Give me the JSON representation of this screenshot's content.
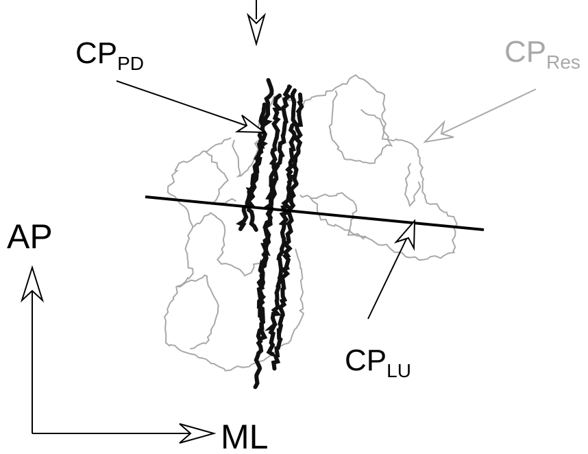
{
  "labels": {
    "pd": {
      "main": "CP",
      "sub": "PD"
    },
    "res": {
      "main": "CP",
      "sub": "Res"
    },
    "lu": {
      "main": "CP",
      "sub": "LU"
    }
  },
  "axes": {
    "vertical": "AP",
    "horizontal": "ML"
  }
}
